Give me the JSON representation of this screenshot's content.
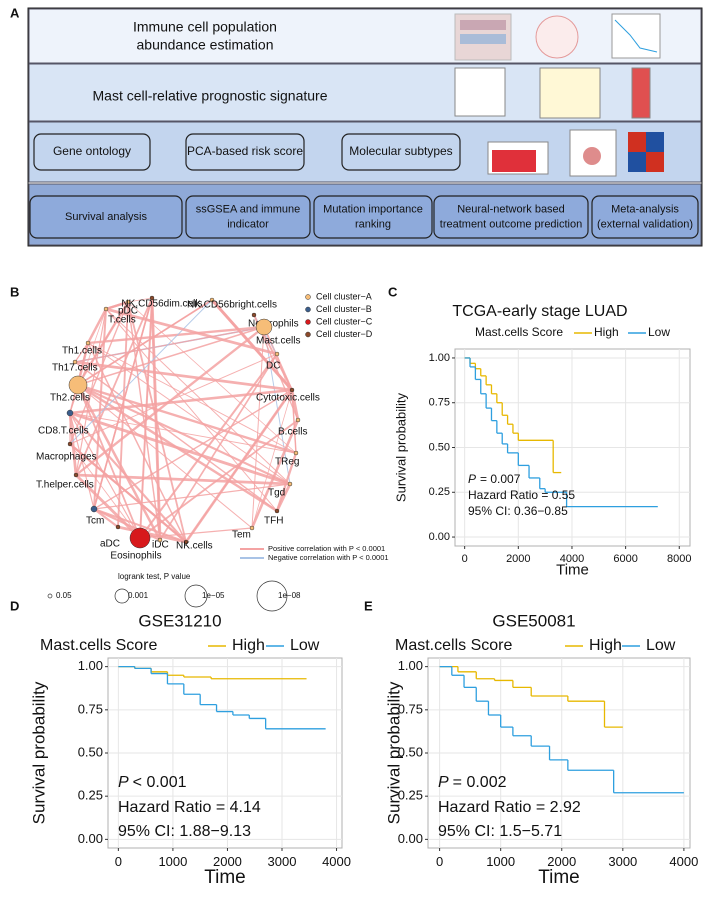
{
  "figure": {
    "panel_labels": [
      "A",
      "B",
      "C",
      "D",
      "E"
    ]
  },
  "workflow": {
    "rows": [
      {
        "boxes": [
          {
            "lines": [
              "Immune cell population",
              "abundance estimation"
            ]
          }
        ]
      },
      {
        "boxes": [
          {
            "lines": [
              "Mast cell-relative prognostic signature"
            ]
          }
        ]
      },
      {
        "boxes": [
          {
            "lines": [
              "Gene ontology"
            ]
          },
          {
            "lines": [
              "PCA-based risk score"
            ]
          },
          {
            "lines": [
              "Molecular subtypes"
            ]
          }
        ]
      },
      {
        "boxes": [
          {
            "lines": [
              "Survival analysis"
            ]
          },
          {
            "lines": [
              "ssGSEA and immune",
              "indicator"
            ]
          },
          {
            "lines": [
              "Mutation importance",
              "ranking"
            ]
          },
          {
            "lines": [
              "Neural-network based",
              "treatment outcome prediction"
            ]
          },
          {
            "lines": [
              "Meta-analysis",
              "(external validation)"
            ]
          }
        ]
      }
    ]
  },
  "network": {
    "nodes": [
      "pDC",
      "NK.CD56dim.cells",
      "NK.CD56bright.cells",
      "T.cells",
      "Neutrophils",
      "Mast.cells",
      "Th1.cells",
      "DC",
      "Th17.cells",
      "Th2.cells",
      "Cytotoxic.cells",
      "CD8.T.cells",
      "B.cells",
      "Macrophages",
      "TReg",
      "T.helper.cells",
      "Tgd",
      "Tcm",
      "TFH",
      "Tem",
      "aDC",
      "iDC",
      "Eosinophils",
      "NK.cells"
    ],
    "clusters": [
      {
        "name": "Cell cluster−A",
        "color": "#f6bd78"
      },
      {
        "name": "Cell cluster−B",
        "color": "#3b5e8c"
      },
      {
        "name": "Cell cluster−C",
        "color": "#d7191c"
      },
      {
        "name": "Cell cluster−D",
        "color": "#8b4a2b"
      }
    ],
    "edges": [
      {
        "name": "Positive correlation with P < 0.0001",
        "color": "#f4a3a3"
      },
      {
        "name": "Negative correlation with P < 0.0001",
        "color": "#a9c3e6"
      }
    ],
    "size_title": "logrank test, P value",
    "sizes": [
      "0.05",
      "0.001",
      "1e−05",
      "1e−08"
    ]
  },
  "chart_data": [
    {
      "type": "line",
      "title": "TCGA-early stage LUAD",
      "legend_title": "Mast.cells Score",
      "series": [
        {
          "name": "High",
          "color": "#e7b800",
          "x": [
            0,
            200,
            400,
            600,
            800,
            1000,
            1200,
            1400,
            1600,
            1800,
            2000,
            3300,
            3600
          ],
          "values": [
            1,
            0.97,
            0.94,
            0.9,
            0.85,
            0.8,
            0.75,
            0.68,
            0.63,
            0.58,
            0.54,
            0.36,
            0.36
          ]
        },
        {
          "name": "Low",
          "color": "#2e9fdf",
          "x": [
            0,
            200,
            400,
            600,
            800,
            1000,
            1200,
            1400,
            1600,
            2000,
            2400,
            2800,
            3000,
            3800,
            7200
          ],
          "values": [
            1,
            0.95,
            0.88,
            0.8,
            0.72,
            0.65,
            0.58,
            0.52,
            0.47,
            0.4,
            0.33,
            0.27,
            0.25,
            0.17,
            0.17
          ]
        }
      ],
      "xlabel": "Time",
      "ylabel": "Survival probability",
      "xlim": [
        -360,
        8400
      ],
      "ylim": [
        -0.05,
        1.05
      ],
      "xticks": [
        0,
        2000,
        4000,
        6000,
        8000
      ],
      "yticks": [
        {
          "value": 0,
          "label": "0.00"
        },
        {
          "value": 0.25,
          "label": "0.25"
        },
        {
          "value": 0.5,
          "label": "0.50"
        },
        {
          "value": 0.75,
          "label": "0.75"
        },
        {
          "value": 1,
          "label": "1.00"
        }
      ],
      "grid": true,
      "annotation": {
        "p_symbol": "P",
        "p_text": "= 0.007",
        "hr": "Hazard Ratio = 0.55",
        "ci": "95% CI: 0.36−0.85"
      }
    },
    {
      "type": "line",
      "title": "GSE31210",
      "legend_title": "Mast.cells Score",
      "series": [
        {
          "name": "High",
          "color": "#e7b800",
          "x": [
            0,
            300,
            600,
            900,
            1200,
            1700,
            3450
          ],
          "values": [
            1,
            0.99,
            0.97,
            0.95,
            0.94,
            0.93,
            0.93
          ]
        },
        {
          "name": "Low",
          "color": "#2e9fdf",
          "x": [
            0,
            300,
            600,
            900,
            1200,
            1500,
            1800,
            2100,
            2400,
            2700,
            3800
          ],
          "values": [
            1,
            0.99,
            0.96,
            0.9,
            0.84,
            0.78,
            0.74,
            0.72,
            0.7,
            0.64,
            0.64
          ]
        }
      ],
      "xlabel": "Time",
      "ylabel": "Survival probability",
      "xlim": [
        -190,
        4100
      ],
      "ylim": [
        -0.05,
        1.05
      ],
      "xticks": [
        0,
        1000,
        2000,
        3000,
        4000
      ],
      "yticks": [
        {
          "value": 0,
          "label": "0.00"
        },
        {
          "value": 0.25,
          "label": "0.25"
        },
        {
          "value": 0.5,
          "label": "0.50"
        },
        {
          "value": 0.75,
          "label": "0.75"
        },
        {
          "value": 1,
          "label": "1.00"
        }
      ],
      "grid": true,
      "annotation": {
        "p_symbol": "P",
        "p_text": "< 0.001",
        "hr": "Hazard Ratio = 4.14",
        "ci": "95% CI: 1.88−9.13"
      }
    },
    {
      "type": "line",
      "title": "GSE50081",
      "legend_title": "Mast.cells Score",
      "series": [
        {
          "name": "High",
          "color": "#e7b800",
          "x": [
            0,
            300,
            600,
            900,
            1200,
            1500,
            2100,
            2700,
            3000
          ],
          "values": [
            1,
            0.97,
            0.93,
            0.92,
            0.88,
            0.83,
            0.8,
            0.65,
            0.65
          ]
        },
        {
          "name": "Low",
          "color": "#2e9fdf",
          "x": [
            0,
            200,
            400,
            600,
            800,
            1000,
            1200,
            1500,
            1800,
            2100,
            2850,
            4000
          ],
          "values": [
            1,
            0.95,
            0.88,
            0.8,
            0.72,
            0.65,
            0.6,
            0.54,
            0.46,
            0.4,
            0.27,
            0.27
          ]
        }
      ],
      "xlabel": "Time",
      "ylabel": "Survival probability",
      "xlim": [
        -190,
        4100
      ],
      "ylim": [
        -0.05,
        1.05
      ],
      "xticks": [
        0,
        1000,
        2000,
        3000,
        4000
      ],
      "yticks": [
        {
          "value": 0,
          "label": "0.00"
        },
        {
          "value": 0.25,
          "label": "0.25"
        },
        {
          "value": 0.5,
          "label": "0.50"
        },
        {
          "value": 0.75,
          "label": "0.75"
        },
        {
          "value": 1,
          "label": "1.00"
        }
      ],
      "grid": true,
      "annotation": {
        "p_symbol": "P",
        "p_text": "= 0.002",
        "hr": "Hazard Ratio = 2.92",
        "ci": "95% CI: 1.5−5.71"
      }
    }
  ]
}
